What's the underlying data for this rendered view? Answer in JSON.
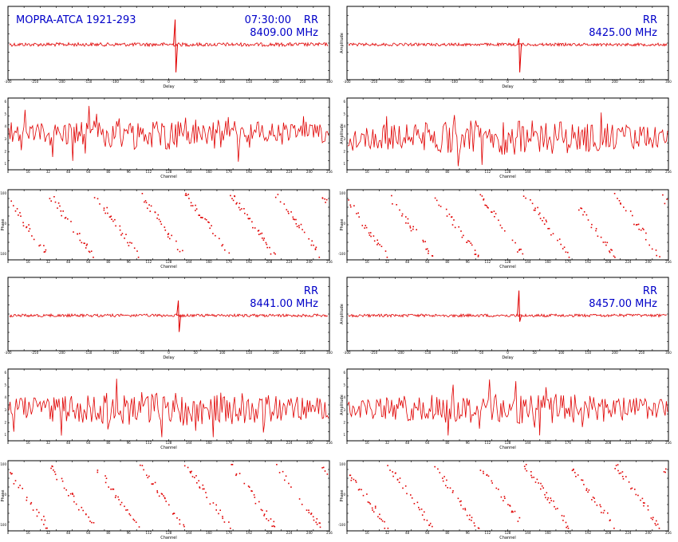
{
  "figure": {
    "source_label": "MOPRA-ATCA 1921-293",
    "time_label": "07:30:00",
    "colors": {
      "trace": "#e00000",
      "annotation": "#0000c8",
      "axes": "#000000"
    }
  },
  "chart_data": [
    {
      "type": "line",
      "panel": "delay",
      "band": 0,
      "polarization": "RR",
      "frequency": "8409.00 MHz",
      "xlabel": "Delay",
      "ylabel": "",
      "spike_x": 0.52,
      "spike_up": 1,
      "spike_down": 1,
      "noise": 0.05,
      "xticks": [
        "-300",
        "-250",
        "-200",
        "-150",
        "-100",
        "-50",
        "0",
        "50",
        "100",
        "150",
        "200",
        "250",
        "300"
      ]
    },
    {
      "type": "line",
      "panel": "amplitude",
      "band": 0,
      "xlabel": "Channel",
      "ylabel": "",
      "mean": 0.5,
      "spread": 0.22,
      "yticks": [
        "6",
        "5",
        "4",
        "3",
        "2",
        "1"
      ]
    },
    {
      "type": "scatter",
      "panel": "phase",
      "band": 0,
      "xlabel": "Channel",
      "ylabel": "Phase",
      "wraps": 7,
      "yticks": [
        "100",
        "0",
        "-100"
      ]
    },
    {
      "type": "line",
      "panel": "delay",
      "band": 1,
      "polarization": "RR",
      "frequency": "8425.00 MHz",
      "xlabel": "Delay",
      "ylabel": "Amplitude",
      "spike_x": 0.535,
      "spike_up": 0.25,
      "spike_down": 1,
      "noise": 0.04,
      "xticks": [
        "-300",
        "-250",
        "-200",
        "-150",
        "-100",
        "-50",
        "0",
        "50",
        "100",
        "150",
        "200",
        "250",
        "300"
      ]
    },
    {
      "type": "line",
      "panel": "amplitude",
      "band": 1,
      "xlabel": "Channel",
      "ylabel": "Amplitude",
      "mean": 0.45,
      "spread": 0.24,
      "yticks": [
        "6",
        "5",
        "4",
        "3",
        "2",
        "1"
      ]
    },
    {
      "type": "scatter",
      "panel": "phase",
      "band": 1,
      "xlabel": "Channel",
      "ylabel": "Phase",
      "wraps": 7,
      "yticks": [
        "100",
        "0",
        "-100"
      ]
    },
    {
      "type": "line",
      "panel": "delay",
      "band": 2,
      "polarization": "RR",
      "frequency": "8441.00 MHz",
      "xlabel": "Delay",
      "ylabel": "",
      "spike_x": 0.53,
      "spike_up": 0.6,
      "spike_down": 0.8,
      "noise": 0.04,
      "xticks": [
        "-300",
        "-250",
        "-200",
        "-150",
        "-100",
        "-50",
        "0",
        "50",
        "100",
        "150",
        "200",
        "250",
        "300"
      ]
    },
    {
      "type": "line",
      "panel": "amplitude",
      "band": 2,
      "xlabel": "Channel",
      "ylabel": "",
      "mean": 0.45,
      "spread": 0.24,
      "yticks": [
        "6",
        "5",
        "4",
        "3",
        "2",
        "1"
      ]
    },
    {
      "type": "scatter",
      "panel": "phase",
      "band": 2,
      "xlabel": "Channel",
      "ylabel": "Phase",
      "wraps": 7,
      "yticks": [
        "100",
        "0",
        "-100"
      ]
    },
    {
      "type": "line",
      "panel": "delay",
      "band": 3,
      "polarization": "RR",
      "frequency": "8457.00 MHz",
      "xlabel": "Delay",
      "ylabel": "Amplitude",
      "spike_x": 0.535,
      "spike_up": 1,
      "spike_down": 0.3,
      "noise": 0.04,
      "xticks": [
        "-300",
        "-250",
        "-200",
        "-150",
        "-100",
        "-50",
        "0",
        "50",
        "100",
        "150",
        "200",
        "250",
        "300"
      ]
    },
    {
      "type": "line",
      "panel": "amplitude",
      "band": 3,
      "xlabel": "Channel",
      "ylabel": "Amplitude",
      "mean": 0.45,
      "spread": 0.22,
      "yticks": [
        "6",
        "5",
        "4",
        "3",
        "2",
        "1"
      ]
    },
    {
      "type": "scatter",
      "panel": "phase",
      "band": 3,
      "xlabel": "Channel",
      "ylabel": "Phase",
      "wraps": 7,
      "yticks": [
        "100",
        "0",
        "-100"
      ]
    }
  ]
}
